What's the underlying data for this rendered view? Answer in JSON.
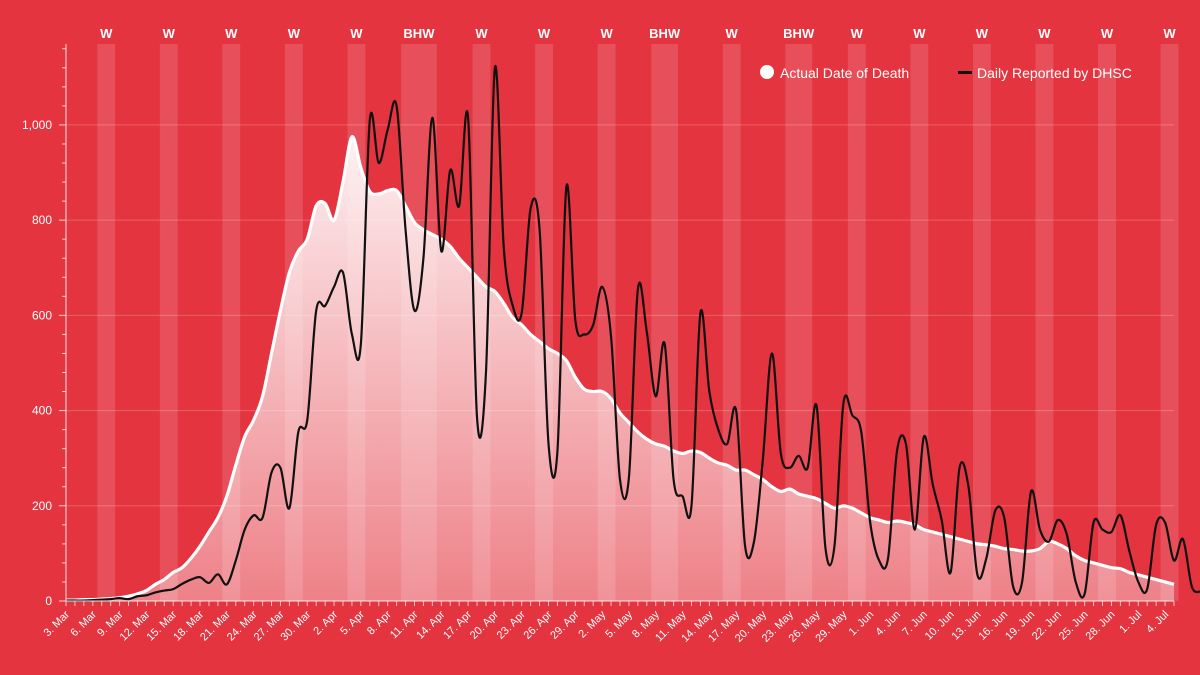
{
  "colors": {
    "background": "#e3343f",
    "actual_line": "#ffffff",
    "reported_line": "#111111",
    "weekend_band": "#ffffff"
  },
  "legend": {
    "actual_label": "Actual Date of Death",
    "reported_label": "Daily Reported by DHSC"
  },
  "chart_data": {
    "type": "area",
    "title": "",
    "xlabel": "",
    "ylabel": "",
    "ylim": [
      0,
      1170
    ],
    "yticks": [
      0,
      200,
      400,
      600,
      800,
      1000
    ],
    "ytick_labels": [
      "0",
      "200",
      "400",
      "600",
      "800",
      "1,000"
    ],
    "start_date": "3 Mar",
    "num_days": 125,
    "xtick_labels": [
      "3. Mar",
      "6. Mar",
      "9. Mar",
      "12. Mar",
      "15. Mar",
      "18. Mar",
      "21. Mar",
      "24. Mar",
      "27. Mar",
      "30. Mar",
      "2. Apr",
      "5. Apr",
      "8. Apr",
      "11. Apr",
      "14. Apr",
      "17. Apr",
      "20. Apr",
      "23. Apr",
      "26. Apr",
      "29. Apr",
      "2. May",
      "5. May",
      "8. May",
      "11. May",
      "14. May",
      "17. May",
      "20. May",
      "23. May",
      "26. May",
      "29. May",
      "1. Jun",
      "4. Jun",
      "7. Jun",
      "10. Jun",
      "13. Jun",
      "16. Jun",
      "19. Jun",
      "22. Jun",
      "25. Jun",
      "28. Jun",
      "1. Jul",
      "4. Jul"
    ],
    "weekend_bands": [
      {
        "start_day": 3.5,
        "end_day": 5.5,
        "label": "W"
      },
      {
        "start_day": 10.5,
        "end_day": 12.5,
        "label": "W"
      },
      {
        "start_day": 17.5,
        "end_day": 19.5,
        "label": "W"
      },
      {
        "start_day": 24.5,
        "end_day": 26.5,
        "label": "W"
      },
      {
        "start_day": 31.5,
        "end_day": 33.5,
        "label": "W"
      },
      {
        "start_day": 37.5,
        "end_day": 41.5,
        "label": "BHW"
      },
      {
        "start_day": 45.5,
        "end_day": 47.5,
        "label": "W"
      },
      {
        "start_day": 52.5,
        "end_day": 54.5,
        "label": "W"
      },
      {
        "start_day": 59.5,
        "end_day": 61.5,
        "label": "W"
      },
      {
        "start_day": 65.5,
        "end_day": 68.5,
        "label": "BHW"
      },
      {
        "start_day": 73.5,
        "end_day": 75.5,
        "label": "W"
      },
      {
        "start_day": 80.5,
        "end_day": 83.5,
        "label": "BHW"
      },
      {
        "start_day": 87.5,
        "end_day": 89.5,
        "label": "W"
      },
      {
        "start_day": 94.5,
        "end_day": 96.5,
        "label": "W"
      },
      {
        "start_day": 101.5,
        "end_day": 103.5,
        "label": "W"
      },
      {
        "start_day": 108.5,
        "end_day": 110.5,
        "label": "W"
      },
      {
        "start_day": 115.5,
        "end_day": 117.5,
        "label": "W"
      },
      {
        "start_day": 122.5,
        "end_day": 124.5,
        "label": "W"
      }
    ],
    "series": [
      {
        "name": "Actual Date of Death",
        "values": [
          2,
          2,
          3,
          3,
          4,
          5,
          7,
          10,
          15,
          22,
          35,
          45,
          60,
          70,
          90,
          115,
          145,
          175,
          220,
          285,
          345,
          380,
          430,
          520,
          610,
          690,
          735,
          760,
          830,
          835,
          800,
          880,
          975,
          910,
          860,
          855,
          862,
          862,
          830,
          795,
          780,
          770,
          760,
          745,
          720,
          700,
          680,
          660,
          650,
          625,
          595,
          580,
          560,
          545,
          530,
          520,
          505,
          470,
          445,
          440,
          440,
          425,
          395,
          375,
          355,
          340,
          330,
          325,
          315,
          310,
          315,
          312,
          300,
          290,
          285,
          275,
          275,
          265,
          255,
          240,
          230,
          235,
          225,
          220,
          215,
          205,
          195,
          200,
          195,
          185,
          175,
          170,
          165,
          168,
          165,
          160,
          150,
          145,
          140,
          135,
          130,
          125,
          120,
          118,
          115,
          110,
          108,
          105,
          105,
          110,
          125,
          120,
          110,
          95,
          85,
          80,
          75,
          70,
          68,
          60,
          55,
          50,
          45,
          40,
          35
        ]
      },
      {
        "name": "Daily Reported by DHSC",
        "values": [
          1,
          1,
          1,
          2,
          3,
          4,
          6,
          4,
          10,
          12,
          18,
          22,
          25,
          36,
          45,
          50,
          38,
          56,
          35,
          85,
          150,
          180,
          175,
          270,
          280,
          195,
          355,
          380,
          610,
          620,
          660,
          690,
          560,
          540,
          1010,
          920,
          990,
          1040,
          780,
          610,
          720,
          1015,
          735,
          905,
          830,
          1015,
          385,
          480,
          1120,
          740,
          620,
          605,
          825,
          780,
          330,
          315,
          870,
          590,
          560,
          580,
          660,
          555,
          255,
          260,
          655,
          565,
          430,
          540,
          255,
          220,
          200,
          605,
          440,
          360,
          330,
          400,
          115,
          125,
          300,
          520,
          310,
          280,
          305,
          280,
          410,
          110,
          115,
          415,
          390,
          355,
          165,
          85,
          90,
          315,
          330,
          150,
          345,
          245,
          170,
          60,
          280,
          240,
          55,
          90,
          190,
          175,
          30,
          40,
          230,
          150,
          125,
          170,
          140,
          40,
          15,
          165,
          150,
          145,
          180,
          105,
          40,
          25,
          160,
          165,
          85,
          130,
          30,
          20
        ]
      }
    ]
  }
}
